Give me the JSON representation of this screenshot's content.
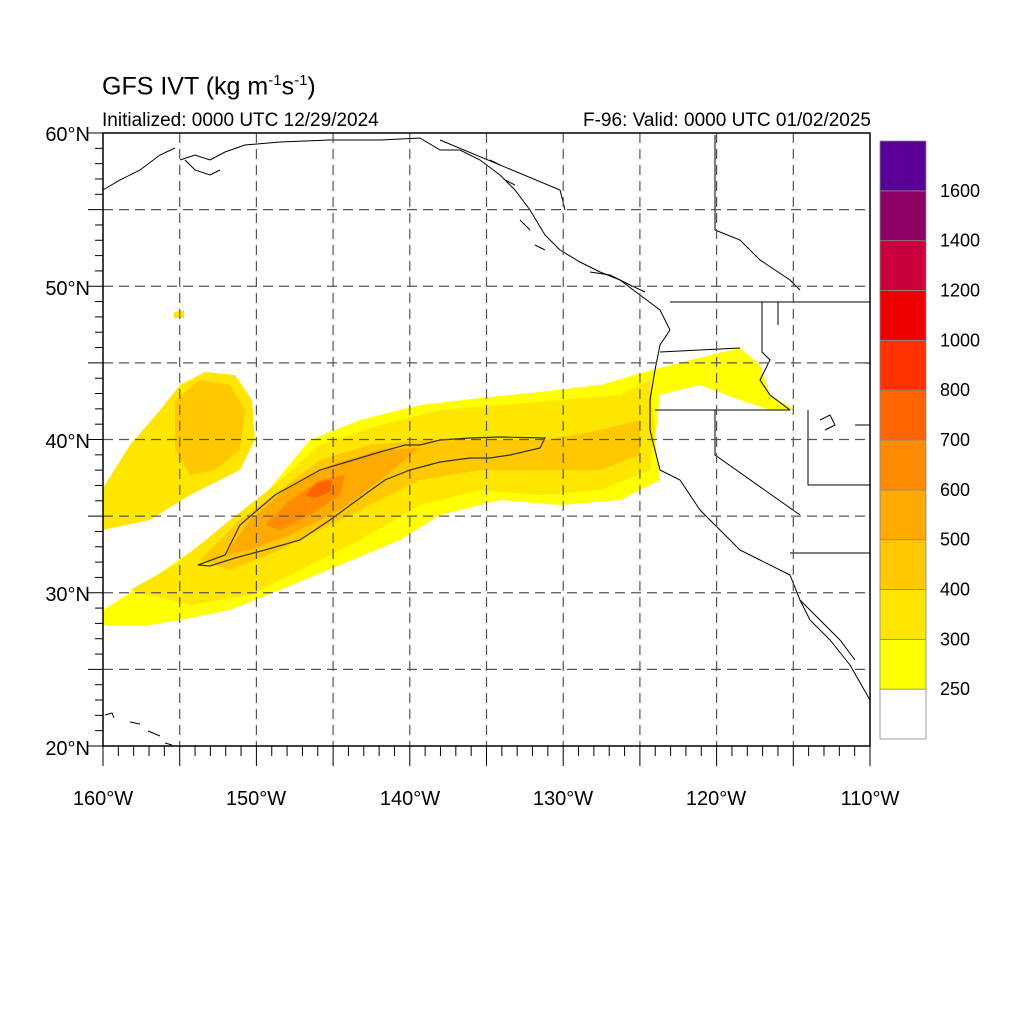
{
  "title": {
    "main": "GFS IVT (kg m",
    "exp1": "-1",
    "mid": "s",
    "exp2": "-1",
    "close": ")"
  },
  "initialized": "Initialized: 0000 UTC 12/29/2024",
  "valid": "F-96: Valid: 0000 UTC 01/02/2025",
  "lat_labels": [
    "60°N",
    "50°N",
    "40°N",
    "30°N",
    "20°N"
  ],
  "lon_labels": [
    "160°W",
    "150°W",
    "140°W",
    "130°W",
    "120°W",
    "110°W"
  ],
  "colorbar": {
    "labels": [
      "250",
      "300",
      "400",
      "500",
      "600",
      "700",
      "800",
      "1000",
      "1200",
      "1400",
      "1600"
    ],
    "colors": [
      "#ffffff",
      "#ffff00",
      "#ffe600",
      "#ffc800",
      "#ffaa00",
      "#ff8c00",
      "#ff6400",
      "#ff3200",
      "#ee0000",
      "#c8003c",
      "#8c0064",
      "#5a0096"
    ]
  },
  "colors": {
    "grid": "#555555",
    "coast": "#000000",
    "border": "#808080"
  }
}
